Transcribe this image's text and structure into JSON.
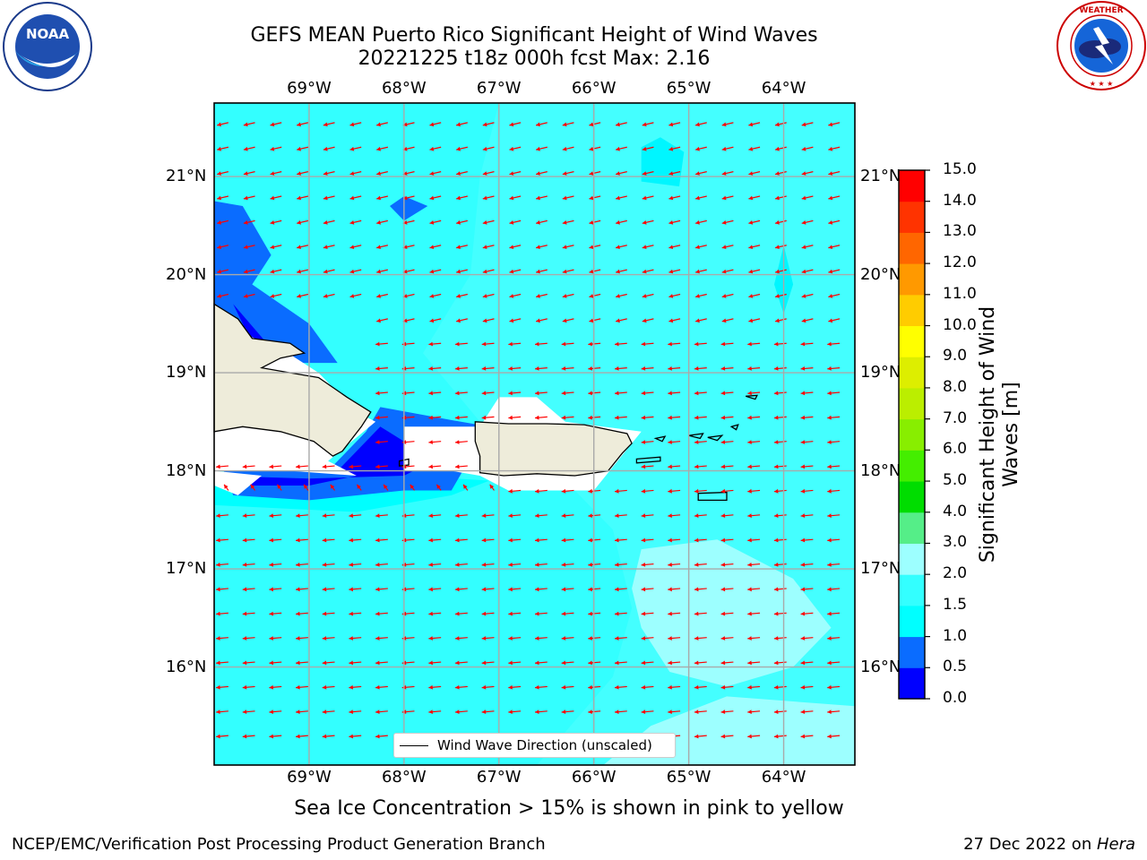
{
  "title": {
    "line1": "GEFS MEAN Puerto Rico Significant Height of Wind Waves",
    "line2": "20221225 t18z 000h fcst   Max: 2.16"
  },
  "logos": {
    "left": {
      "name": "noaa-logo",
      "text": "NOAA",
      "ring_text": "NATIONAL OCEANIC AND ATMOSPHERIC ADMINISTRATION · U.S. DEPARTMENT OF COMMERCE"
    },
    "right": {
      "name": "nws-logo",
      "ring_text": "NATIONAL WEATHER SERVICE"
    }
  },
  "map": {
    "lon_labels": [
      "69°W",
      "68°W",
      "67°W",
      "66°W",
      "65°W",
      "64°W"
    ],
    "lat_labels": [
      "21°N",
      "20°N",
      "19°N",
      "18°N",
      "17°N",
      "16°N"
    ],
    "lon_values": [
      -69,
      -68,
      -67,
      -66,
      -65,
      -64
    ],
    "lat_values": [
      21,
      20,
      19,
      18,
      17,
      16
    ],
    "extent": {
      "lon_min": -70.0,
      "lon_max": -63.25,
      "lat_min": 15.0,
      "lat_max": 21.75
    },
    "ocean_color": "#33ffff",
    "land_color": "#eeecda",
    "arrow_color": "#ff0000",
    "vector_direction": "westward"
  },
  "legend": {
    "label": "Wind Wave Direction (unscaled)"
  },
  "colorbar": {
    "title": "Significant Height of Wind Waves [m]",
    "levels": [
      "0.0",
      "0.5",
      "1.0",
      "1.5",
      "2.0",
      "3.0",
      "4.0",
      "5.0",
      "6.0",
      "7.0",
      "8.0",
      "9.0",
      "10.0",
      "11.0",
      "12.0",
      "13.0",
      "14.0",
      "15.0"
    ],
    "colors": [
      "#0000ff",
      "#0a6cff",
      "#00ffff",
      "#33ffff",
      "#9dffff",
      "#55ee88",
      "#00dd00",
      "#44ee00",
      "#88ee00",
      "#bbee00",
      "#ddee00",
      "#ffff00",
      "#ffcc00",
      "#ff9900",
      "#ff6600",
      "#ff3300",
      "#ff0000"
    ]
  },
  "bottom_note": "Sea Ice Concentration > 15% is shown in pink to yellow",
  "footer": {
    "left": "NCEP/EMC/Verification Post Processing Product Generation Branch",
    "right_prefix": "27 Dec 2022 on ",
    "right_host": "Hera"
  }
}
